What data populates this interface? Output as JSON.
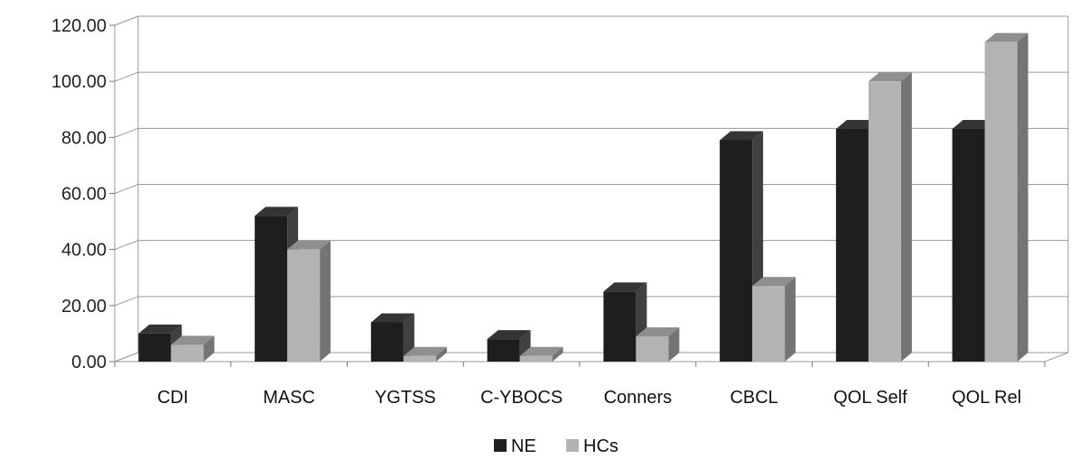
{
  "chart_data": {
    "type": "bar",
    "title": "",
    "xlabel": "",
    "ylabel": "",
    "ylim": [
      0,
      120
    ],
    "yticks": [
      "0.00",
      "20.00",
      "40.00",
      "60.00",
      "80.00",
      "100.00",
      "120.00"
    ],
    "categories": [
      "CDI",
      "MASC",
      "YGTSS",
      "C-YBOCS",
      "Conners",
      "CBCL",
      "QOL Self",
      "QOL Rel"
    ],
    "series": [
      {
        "name": "NE",
        "color": "#1e1e1e",
        "values": [
          10,
          52,
          14,
          8,
          25,
          79,
          83,
          83
        ]
      },
      {
        "name": "HCs",
        "color": "#b3b3b3",
        "values": [
          6,
          40,
          2,
          2,
          9,
          27,
          100,
          114
        ]
      }
    ],
    "grid": true,
    "style": "3d",
    "legend_position": "bottom"
  }
}
